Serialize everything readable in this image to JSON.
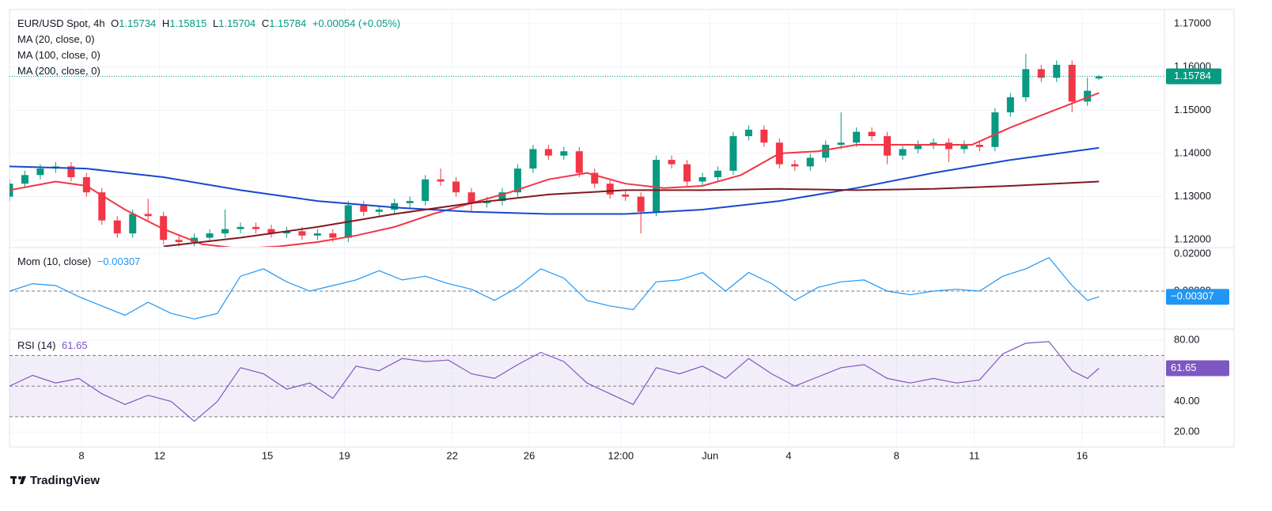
{
  "header": {
    "symbol": "EUR/USD Spot, 4h",
    "o_label": "O",
    "h_label": "H",
    "l_label": "L",
    "c_label": "C",
    "change": "+0.00054 (+0.05%)"
  },
  "chart_data": [
    {
      "type": "candlestick",
      "up_color": "#089981",
      "down_color": "#f23645",
      "x": [
        0,
        4,
        8,
        12,
        16,
        20,
        24,
        28,
        32,
        36,
        40,
        44,
        48,
        52,
        56,
        60,
        64,
        68,
        72,
        76,
        80,
        84,
        88,
        92,
        96,
        100,
        104,
        108,
        112,
        116,
        120,
        124,
        128,
        132,
        136,
        140,
        144,
        148,
        152,
        156,
        160,
        164,
        168,
        172,
        176,
        180,
        184,
        188,
        192,
        196,
        200,
        204,
        208,
        212,
        216,
        220,
        224,
        228,
        232,
        236,
        240,
        244,
        248,
        252,
        256,
        260,
        264,
        268,
        272,
        276,
        280,
        283
      ],
      "open": [
        1.13,
        1.133,
        1.135,
        1.1365,
        1.137,
        1.1345,
        1.131,
        1.1245,
        1.1215,
        1.126,
        1.1255,
        1.12,
        1.1195,
        1.1205,
        1.1215,
        1.1225,
        1.123,
        1.1225,
        1.1215,
        1.122,
        1.121,
        1.1215,
        1.1205,
        1.128,
        1.1265,
        1.127,
        1.1285,
        1.129,
        1.134,
        1.1335,
        1.131,
        1.1285,
        1.129,
        1.131,
        1.1365,
        1.141,
        1.1395,
        1.1405,
        1.1355,
        1.133,
        1.1305,
        1.13,
        1.1265,
        1.1385,
        1.1375,
        1.1335,
        1.1345,
        1.136,
        1.144,
        1.1455,
        1.1425,
        1.1375,
        1.137,
        1.139,
        1.142,
        1.1425,
        1.145,
        1.144,
        1.1395,
        1.141,
        1.142,
        1.1425,
        1.141,
        1.142,
        1.1415,
        1.1495,
        1.153,
        1.1595,
        1.1575,
        1.1605,
        1.152,
        1.15734
      ],
      "high": [
        1.134,
        1.136,
        1.1375,
        1.138,
        1.138,
        1.1355,
        1.132,
        1.1255,
        1.127,
        1.1295,
        1.1265,
        1.121,
        1.1215,
        1.1225,
        1.127,
        1.124,
        1.124,
        1.1235,
        1.123,
        1.123,
        1.1225,
        1.1225,
        1.129,
        1.129,
        1.128,
        1.1295,
        1.13,
        1.135,
        1.1365,
        1.1345,
        1.132,
        1.13,
        1.132,
        1.1375,
        1.142,
        1.142,
        1.1415,
        1.1415,
        1.1365,
        1.134,
        1.1315,
        1.131,
        1.1395,
        1.1395,
        1.1385,
        1.1355,
        1.137,
        1.145,
        1.1465,
        1.1465,
        1.1435,
        1.1385,
        1.14,
        1.143,
        1.1495,
        1.146,
        1.146,
        1.145,
        1.142,
        1.143,
        1.1435,
        1.1435,
        1.143,
        1.143,
        1.1505,
        1.154,
        1.163,
        1.1605,
        1.1615,
        1.1615,
        1.1575,
        1.15815
      ],
      "low": [
        1.129,
        1.132,
        1.134,
        1.1355,
        1.1335,
        1.13,
        1.1235,
        1.1205,
        1.1205,
        1.1245,
        1.119,
        1.1185,
        1.1185,
        1.1195,
        1.1205,
        1.1215,
        1.1215,
        1.1205,
        1.1205,
        1.12,
        1.12,
        1.1195,
        1.1195,
        1.1255,
        1.1255,
        1.126,
        1.1275,
        1.128,
        1.1325,
        1.13,
        1.1265,
        1.1275,
        1.128,
        1.13,
        1.1355,
        1.1385,
        1.1385,
        1.1345,
        1.132,
        1.1295,
        1.129,
        1.1215,
        1.1255,
        1.1365,
        1.1325,
        1.1325,
        1.1335,
        1.135,
        1.143,
        1.1415,
        1.1365,
        1.136,
        1.136,
        1.138,
        1.141,
        1.1415,
        1.143,
        1.1375,
        1.1385,
        1.14,
        1.141,
        1.138,
        1.14,
        1.1405,
        1.1405,
        1.1485,
        1.152,
        1.1565,
        1.1565,
        1.1495,
        1.151,
        1.15704
      ],
      "close": [
        1.133,
        1.135,
        1.1365,
        1.137,
        1.1345,
        1.131,
        1.1245,
        1.1215,
        1.126,
        1.1255,
        1.12,
        1.1195,
        1.1205,
        1.1215,
        1.1225,
        1.123,
        1.1225,
        1.1215,
        1.122,
        1.121,
        1.1215,
        1.1205,
        1.128,
        1.1265,
        1.127,
        1.1285,
        1.129,
        1.134,
        1.1335,
        1.131,
        1.1285,
        1.129,
        1.131,
        1.1365,
        1.141,
        1.1395,
        1.1405,
        1.1355,
        1.133,
        1.1305,
        1.13,
        1.1265,
        1.1385,
        1.1375,
        1.1335,
        1.1345,
        1.136,
        1.144,
        1.1455,
        1.1425,
        1.1375,
        1.137,
        1.139,
        1.142,
        1.1425,
        1.145,
        1.144,
        1.1395,
        1.141,
        1.142,
        1.1425,
        1.141,
        1.142,
        1.1415,
        1.1495,
        1.153,
        1.1595,
        1.1575,
        1.1605,
        1.152,
        1.1545,
        1.15784
      ],
      "series": [
        {
          "name": "MA (20, close, 0)",
          "color": "#f23645",
          "x": [
            0,
            12,
            20,
            30,
            40,
            50,
            60,
            70,
            80,
            90,
            100,
            110,
            120,
            130,
            140,
            150,
            160,
            170,
            180,
            190,
            200,
            210,
            220,
            230,
            240,
            250,
            260,
            270,
            283
          ],
          "values": [
            1.1315,
            1.1335,
            1.1325,
            1.127,
            1.1225,
            1.119,
            1.118,
            1.1185,
            1.1195,
            1.121,
            1.123,
            1.126,
            1.1285,
            1.131,
            1.134,
            1.1355,
            1.133,
            1.132,
            1.1325,
            1.135,
            1.14,
            1.1405,
            1.142,
            1.142,
            1.142,
            1.142,
            1.146,
            1.1495,
            1.154
          ]
        },
        {
          "name": "MA (100, close, 0)",
          "color": "#1848cc",
          "x": [
            0,
            20,
            40,
            60,
            80,
            100,
            120,
            140,
            160,
            180,
            200,
            220,
            240,
            260,
            283
          ],
          "values": [
            1.137,
            1.1365,
            1.1345,
            1.1315,
            1.129,
            1.1275,
            1.1265,
            1.126,
            1.126,
            1.127,
            1.129,
            1.132,
            1.1355,
            1.1385,
            1.1413
          ]
        },
        {
          "name": "MA (200, close, 0)",
          "color": "#801922",
          "x": [
            40,
            60,
            80,
            100,
            120,
            140,
            160,
            180,
            200,
            220,
            240,
            260,
            283
          ],
          "values": [
            1.1185,
            1.1205,
            1.123,
            1.126,
            1.1285,
            1.1305,
            1.1315,
            1.1315,
            1.1318,
            1.1315,
            1.1318,
            1.1325,
            1.1335
          ]
        }
      ],
      "xlim": [
        0,
        300
      ],
      "xticks": [
        {
          "value": 18.7,
          "label": "8"
        },
        {
          "value": 39,
          "label": "12"
        },
        {
          "value": 67,
          "label": "15"
        },
        {
          "value": 87,
          "label": "19"
        },
        {
          "value": 115,
          "label": "22"
        },
        {
          "value": 135,
          "label": "26"
        },
        {
          "value": 158.8,
          "label": "12:00"
        },
        {
          "value": 182,
          "label": "Jun"
        },
        {
          "value": 202.4,
          "label": "4"
        },
        {
          "value": 230.4,
          "label": "8"
        },
        {
          "value": 250.6,
          "label": "11"
        },
        {
          "value": 278.6,
          "label": "16"
        }
      ],
      "ylim": [
        1.1184,
        1.1733
      ],
      "yticks": [
        {
          "value": 1.12,
          "label": "1.12000"
        },
        {
          "value": 1.13,
          "label": "1.13000"
        },
        {
          "value": 1.14,
          "label": "1.14000"
        },
        {
          "value": 1.15,
          "label": "1.15000"
        },
        {
          "value": 1.16,
          "label": "1.16000"
        },
        {
          "value": 1.17,
          "label": "1.17000"
        }
      ]
    },
    {
      "type": "line",
      "title": "Mom (10, close)",
      "color": "#2196f3",
      "x": [
        0,
        6,
        12,
        18,
        24,
        30,
        36,
        42,
        48,
        54,
        60,
        66,
        72,
        78,
        84,
        90,
        96,
        102,
        108,
        114,
        120,
        126,
        132,
        138,
        144,
        150,
        156,
        162,
        168,
        174,
        180,
        186,
        192,
        198,
        204,
        210,
        216,
        222,
        228,
        234,
        240,
        246,
        252,
        258,
        264,
        270,
        276,
        280,
        283
      ],
      "values": [
        0,
        0.004,
        0.003,
        -0.003,
        -0.008,
        -0.013,
        -0.006,
        -0.012,
        -0.015,
        -0.012,
        0.008,
        0.012,
        0.005,
        0,
        0.003,
        0.006,
        0.011,
        0.006,
        0.008,
        0.004,
        0.001,
        -0.005,
        0.002,
        0.012,
        0.007,
        -0.005,
        -0.008,
        -0.01,
        0.005,
        0.006,
        0.01,
        0,
        0.01,
        0.004,
        -0.005,
        0.002,
        0.005,
        0.006,
        0,
        -0.002,
        0,
        0.001,
        0,
        0.008,
        0.012,
        0.018,
        0.003,
        -0.005,
        -0.00307
      ],
      "last_label": "−0.00307",
      "ylim": [
        -0.02,
        0.023
      ],
      "hlines": [
        0
      ],
      "yticks": [
        {
          "value": 0.02,
          "label": "0.02000"
        },
        {
          "value": 0,
          "label": "0.00000"
        }
      ]
    },
    {
      "type": "line",
      "title": "RSI (14)",
      "color": "#7e57c2",
      "x": [
        0,
        6,
        12,
        18,
        24,
        30,
        36,
        42,
        48,
        54,
        60,
        66,
        72,
        78,
        84,
        90,
        96,
        102,
        108,
        114,
        120,
        126,
        132,
        138,
        144,
        150,
        156,
        162,
        168,
        174,
        180,
        186,
        192,
        198,
        204,
        210,
        216,
        222,
        228,
        234,
        240,
        246,
        252,
        258,
        264,
        270,
        276,
        280,
        283
      ],
      "values": [
        50,
        57,
        52,
        55,
        45,
        38,
        44,
        40,
        27,
        40,
        62,
        58,
        48,
        52,
        42,
        63,
        60,
        68,
        66,
        67,
        58,
        55,
        64,
        72,
        66,
        52,
        45,
        38,
        62,
        58,
        63,
        55,
        68,
        58,
        50,
        56,
        62,
        64,
        55,
        52,
        55,
        52,
        54,
        71,
        78,
        79,
        60,
        55,
        61.65
      ],
      "last_label": "61.65",
      "ylim": [
        10.3,
        86.7
      ],
      "hlines": [
        70,
        50,
        30
      ],
      "band": [
        30,
        70
      ],
      "yticks": [
        {
          "value": 20,
          "label": "20.00"
        },
        {
          "value": 40,
          "label": "40.00"
        },
        {
          "value": 60,
          "label": "60.00"
        },
        {
          "value": 80,
          "label": "80.00"
        }
      ]
    }
  ],
  "footer": {
    "brand": "TradingView"
  }
}
